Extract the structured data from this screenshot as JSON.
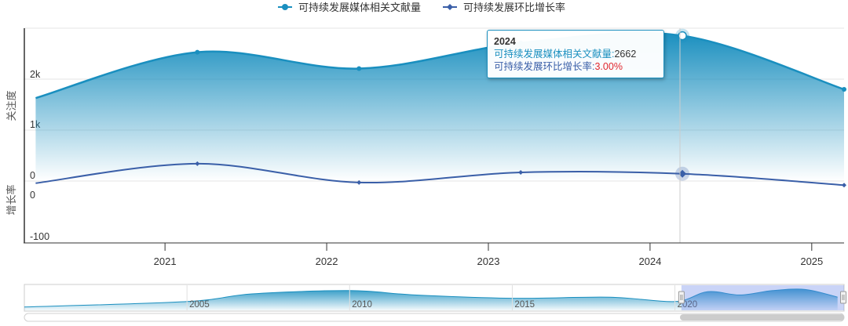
{
  "chart_data": {
    "type": "area",
    "legend": {
      "placement": "top-center",
      "items": [
        {
          "label": "可持续发展媒体相关文献量",
          "color": "#1a8fbf"
        },
        {
          "label": "可持续发展环比增长率",
          "color": "#3a5fa8"
        }
      ]
    },
    "x_ticks": [
      "2021",
      "2022",
      "2023",
      "2024",
      "2025"
    ],
    "top_panel": {
      "ylabel": "关注度",
      "ytick_labels": [
        "2k",
        "1k",
        "0"
      ],
      "ylim": [
        0,
        2800
      ],
      "series": {
        "name": "可持续发展媒体相关文献量",
        "x": [
          2020.2,
          2021.2,
          2022.2,
          2023.2,
          2024.2,
          2025.2
        ],
        "values": [
          1520,
          2360,
          2060,
          2530,
          2662,
          1680
        ]
      },
      "color": "#1a8fbf"
    },
    "bottom_panel": {
      "ylabel": "增长率",
      "ytick_labels": [
        "0",
        "-100"
      ],
      "ylim": [
        -100,
        40
      ],
      "series": {
        "name": "可持续发展环比增长率",
        "x": [
          2020.2,
          2021.2,
          2022.2,
          2023.2,
          2024.2,
          2025.2
        ],
        "values": [
          -11,
          18,
          -10,
          5,
          3,
          -14
        ]
      },
      "color": "#3a5fa8"
    },
    "navigator": {
      "tick_labels": [
        "2005",
        "2010",
        "2015",
        "2020"
      ],
      "range_start": 2000,
      "range_end": 2025.2,
      "selected_start": 2020.2,
      "selected_end": 2025.2,
      "x": [
        2000,
        2005,
        2007,
        2010,
        2012,
        2015,
        2018,
        2020,
        2021,
        2022,
        2023,
        2024,
        2025
      ],
      "values": [
        0.15,
        0.4,
        0.75,
        0.9,
        0.7,
        0.55,
        0.6,
        0.4,
        0.85,
        0.7,
        0.9,
        0.95,
        0.6
      ]
    },
    "tooltip": {
      "title": "2024",
      "row1_label": "可持续发展媒体相关文献量:",
      "row1_value": "2662",
      "row2_label": "可持续发展环比增长率:",
      "row2_value": "3.00%"
    }
  }
}
